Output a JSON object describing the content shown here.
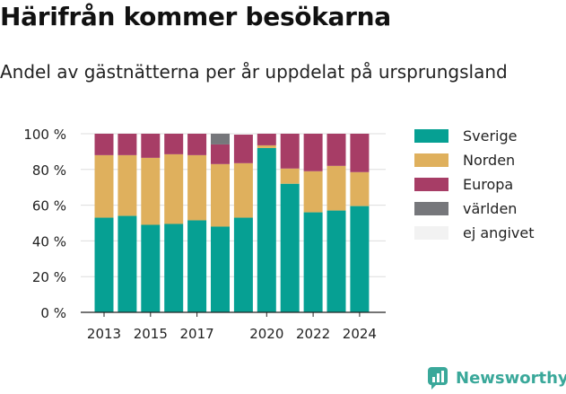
{
  "title": "Härifrån kommer besökarna",
  "subtitle": "Andel av gästnätterna per år uppdelat på ursprungsland",
  "brand": {
    "name": "Newsworthy"
  },
  "chart_data": {
    "type": "bar",
    "stacked": true,
    "title": "Härifrån kommer besökarna",
    "subtitle": "Andel av gästnätterna per år uppdelat på ursprungsland",
    "xlabel": "",
    "ylabel": "",
    "ylim": [
      0,
      100
    ],
    "y_ticks": [
      0,
      20,
      40,
      60,
      80,
      100
    ],
    "y_tick_labels": [
      "0 %",
      "20 %",
      "40 %",
      "60 %",
      "80 %",
      "100 %"
    ],
    "x_tick_labels": [
      "2013",
      "2015",
      "2017",
      "2020",
      "2022",
      "2024"
    ],
    "categories": [
      "2013",
      "2014",
      "2015",
      "2016",
      "2017",
      "2018",
      "2019",
      "2020",
      "2021",
      "2022",
      "2023",
      "2024"
    ],
    "grid": true,
    "legend_position": "right",
    "series": [
      {
        "name": "Sverige",
        "color": "#06a093",
        "values": [
          53,
          54,
          49,
          49.5,
          51.5,
          48,
          53,
          92,
          72,
          56,
          57,
          59.5
        ]
      },
      {
        "name": "Norden",
        "color": "#dfb05d",
        "values": [
          35,
          34,
          37.5,
          39,
          36.5,
          35,
          30.5,
          1.5,
          8.5,
          23,
          25,
          19
        ]
      },
      {
        "name": "Europa",
        "color": "#a73d66",
        "values": [
          12,
          12,
          13.5,
          11.5,
          12,
          11,
          16,
          6.5,
          19.5,
          21,
          18,
          21.5
        ]
      },
      {
        "name": "världen",
        "color": "#76777b",
        "values": [
          0,
          0,
          0,
          0,
          0,
          6,
          0,
          0,
          0,
          0,
          0,
          0
        ]
      },
      {
        "name": "ej angivet",
        "color": "#f2f2f2",
        "values": [
          0,
          0,
          0,
          0,
          0,
          0,
          0.5,
          0,
          0,
          0,
          0,
          0
        ]
      }
    ]
  }
}
